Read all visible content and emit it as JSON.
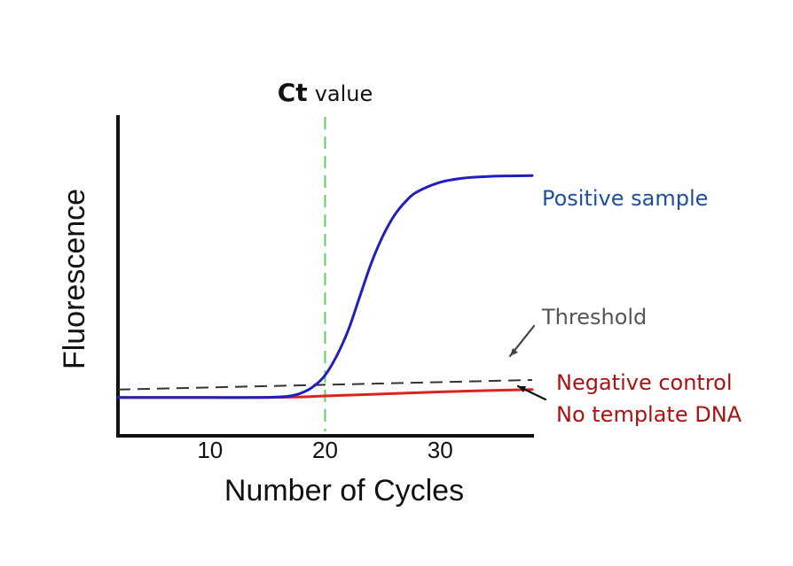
{
  "chart_data": {
    "type": "line",
    "title": "",
    "xlabel": "Number of Cycles",
    "ylabel": "Fluorescence",
    "xlim": [
      2,
      38
    ],
    "ylim": [
      0,
      10
    ],
    "xticks": [
      10,
      20,
      30
    ],
    "x_tick_labels": [
      "10",
      "20",
      "30"
    ],
    "grid": false,
    "legend": "none",
    "ct_annotation": {
      "strong": "Ct",
      "light": "value",
      "x": 20,
      "color": "#66cc66"
    },
    "series": [
      {
        "name": "Positive sample",
        "color": "#1f1fbf",
        "x": [
          2,
          6,
          10,
          14,
          16,
          17,
          18,
          19,
          20,
          21,
          22,
          23,
          24,
          25,
          26,
          27,
          28,
          30,
          32,
          34,
          36,
          38
        ],
        "values": [
          1.2,
          1.2,
          1.2,
          1.2,
          1.22,
          1.25,
          1.35,
          1.55,
          1.9,
          2.5,
          3.3,
          4.35,
          5.4,
          6.25,
          6.9,
          7.35,
          7.65,
          7.95,
          8.08,
          8.13,
          8.15,
          8.16
        ]
      },
      {
        "name": "Negative control\nNo template DNA",
        "color": "#dd2222",
        "x": [
          2,
          6,
          10,
          14,
          18,
          20,
          24,
          28,
          32,
          38
        ],
        "values": [
          1.2,
          1.2,
          1.2,
          1.2,
          1.22,
          1.25,
          1.3,
          1.35,
          1.4,
          1.45
        ]
      },
      {
        "name": "Threshold",
        "color": "#333333",
        "dash": true,
        "x": [
          2,
          38
        ],
        "values": [
          1.45,
          1.75
        ]
      }
    ],
    "annotations": [
      {
        "text": "Positive sample",
        "color": "#1f4f9f"
      },
      {
        "text": "Threshold",
        "color": "#555555"
      },
      {
        "text": "Negative control",
        "color": "#aa1111"
      },
      {
        "text": "No template DNA",
        "color": "#aa1111"
      }
    ]
  }
}
